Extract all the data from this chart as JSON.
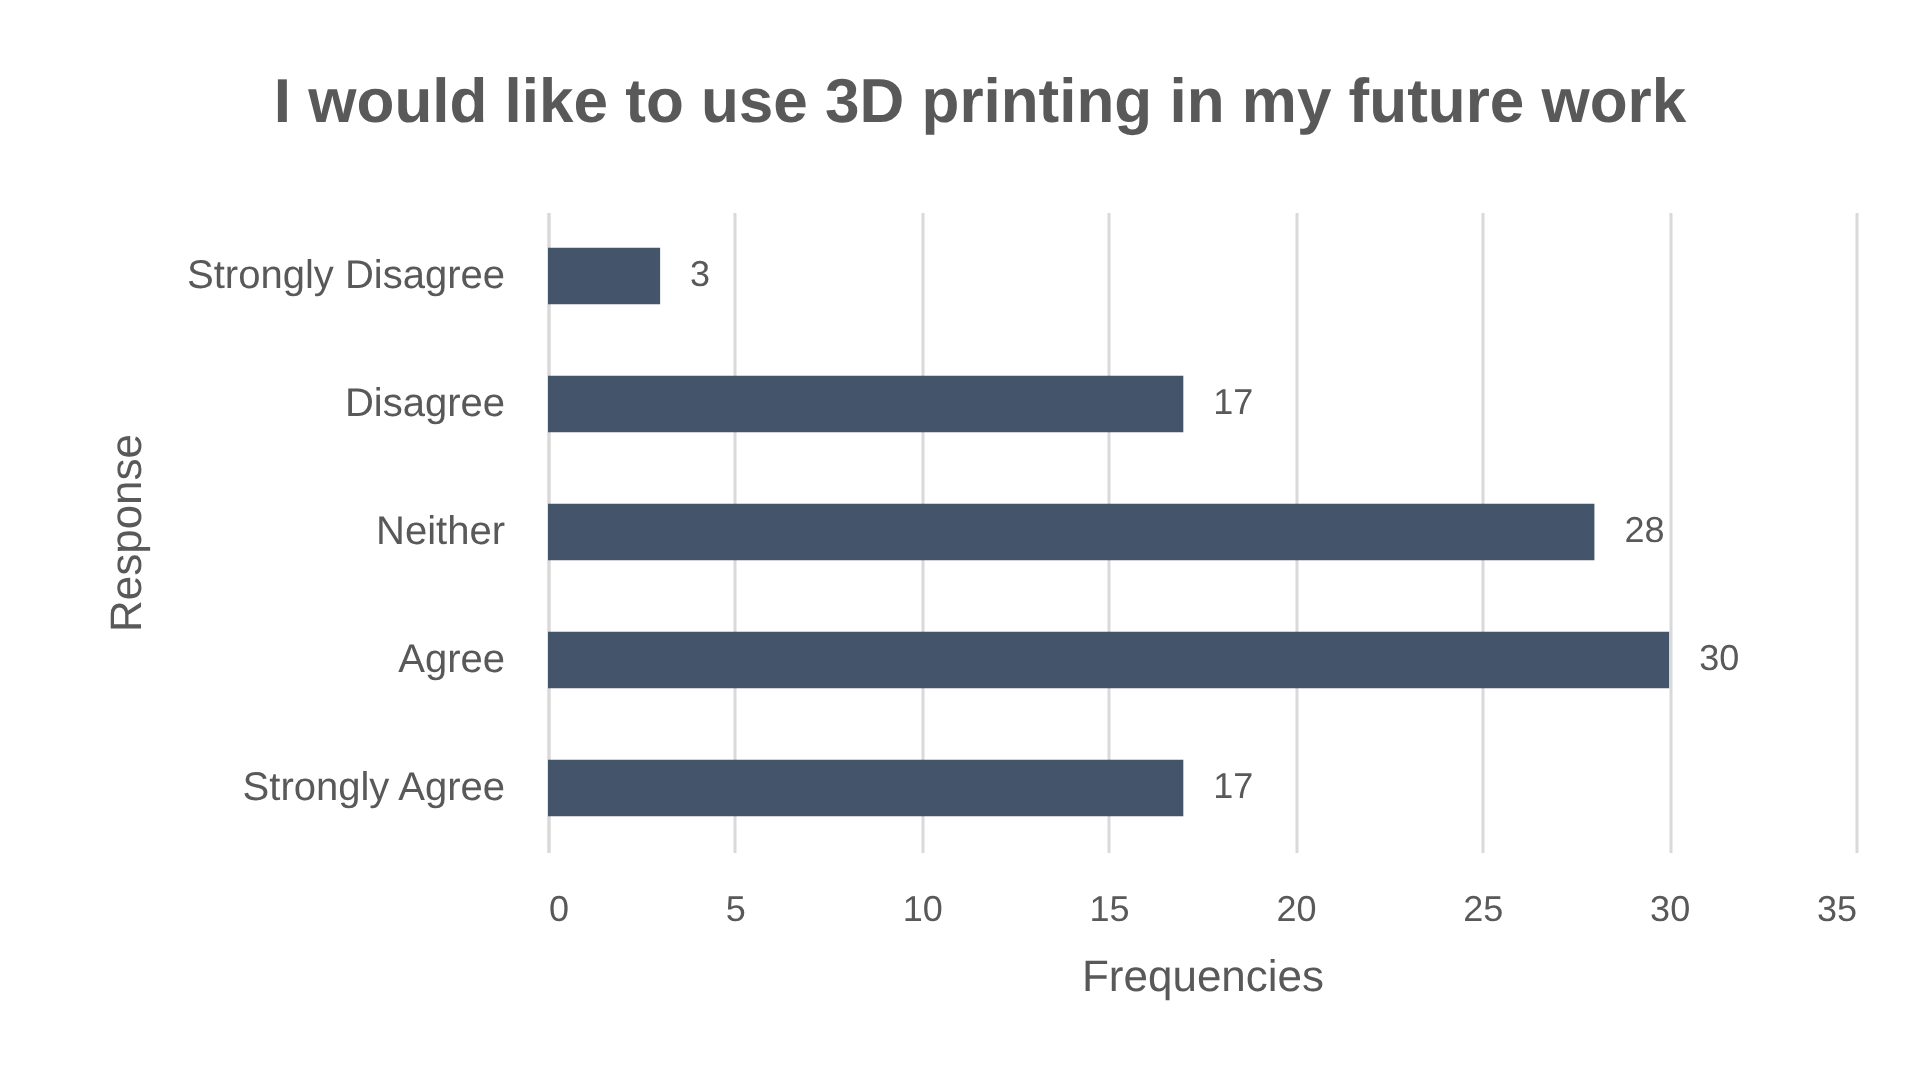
{
  "chart_data": {
    "type": "bar",
    "orientation": "horizontal",
    "title": "I would like to use 3D printing in my future work",
    "xlabel": "Frequencies",
    "ylabel": "Response",
    "categories": [
      "Strongly Disagree",
      "Disagree",
      "Neither",
      "Agree",
      "Strongly Agree"
    ],
    "values": [
      3,
      17,
      28,
      30,
      17
    ],
    "color": "#44546a",
    "xlim": [
      0,
      35
    ],
    "xticks": [
      0,
      5,
      10,
      15,
      20,
      25,
      30,
      35
    ],
    "grid": "x",
    "data_labels": true
  }
}
